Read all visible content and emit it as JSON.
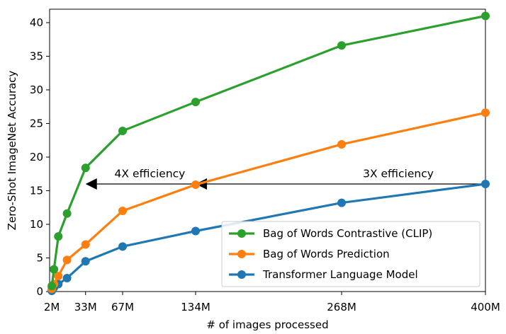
{
  "chart_data": {
    "type": "line",
    "xlabel": "# of images processed",
    "ylabel": "Zero-Shot ImageNet Accuracy",
    "xlim": [
      0,
      400
    ],
    "ylim": [
      0,
      42
    ],
    "x_ticks": [
      2,
      33,
      67,
      134,
      268,
      400
    ],
    "x_tick_labels": [
      "2M",
      "33M",
      "67M",
      "134M",
      "268M",
      "400M"
    ],
    "y_ticks": [
      0,
      5,
      10,
      15,
      20,
      25,
      30,
      35,
      40
    ],
    "y_tick_labels": [
      "0",
      "5",
      "10",
      "15",
      "20",
      "25",
      "30",
      "35",
      "40"
    ],
    "grid": false,
    "legend_position": "lower-right",
    "series": [
      {
        "name": "Bag of Words Contrastive (CLIP)",
        "color": "#2ca02c",
        "x": [
          2,
          4,
          8,
          16,
          33,
          67,
          134,
          268,
          400
        ],
        "y": [
          0.8,
          3.3,
          8.2,
          11.6,
          18.4,
          23.9,
          28.2,
          36.6,
          41.0
        ]
      },
      {
        "name": "Bag of Words Prediction",
        "color": "#ff7f0e",
        "x": [
          2,
          4,
          8,
          16,
          33,
          67,
          134,
          268,
          400
        ],
        "y": [
          0.4,
          1.1,
          2.3,
          4.7,
          7.0,
          12.0,
          15.9,
          21.9,
          26.6
        ]
      },
      {
        "name": "Transformer Language Model",
        "color": "#1f77b4",
        "x": [
          2,
          4,
          8,
          16,
          33,
          67,
          134,
          268,
          400
        ],
        "y": [
          0.1,
          0.6,
          1.1,
          2.0,
          4.5,
          6.7,
          9.0,
          13.2,
          16.0
        ]
      }
    ],
    "annotations": [
      {
        "text": "4X efficiency",
        "x": 92,
        "y": 16.6,
        "arrow_from": [
          134,
          16.0
        ],
        "arrow_to": [
          33,
          16.0
        ]
      },
      {
        "text": "3X efficiency",
        "x": 320,
        "y": 16.6,
        "arrow_from": [
          400,
          16.0
        ],
        "arrow_to": [
          134,
          16.0
        ]
      }
    ]
  }
}
